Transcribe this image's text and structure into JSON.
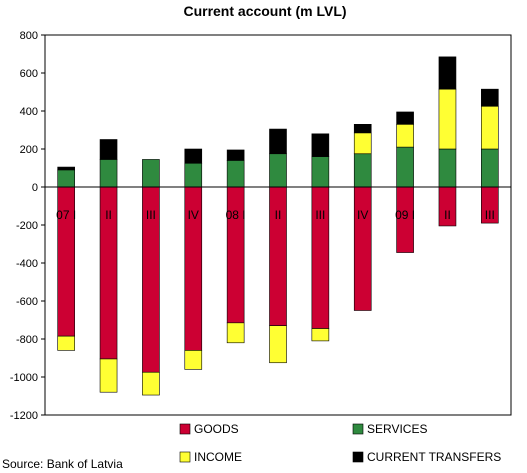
{
  "chart_data": {
    "type": "bar",
    "stacked": true,
    "title": "Current account (m LVL)",
    "source": "Source: Bank of Latvia",
    "categories": [
      "07 I",
      "II",
      "III",
      "IV",
      "08 I",
      "II",
      "III",
      "IV",
      "09 I",
      "II",
      "III"
    ],
    "ylim": [
      -1200,
      800
    ],
    "yticks": [
      800,
      600,
      400,
      200,
      0,
      -200,
      -400,
      -600,
      -800,
      -1000,
      -1200
    ],
    "grid": false,
    "legend_position": "bottom",
    "series": [
      {
        "name": "GOODS",
        "color": "#cc0033",
        "values": [
          -785,
          -905,
          -975,
          -860,
          -715,
          -730,
          -745,
          -650,
          -345,
          -205,
          -190
        ]
      },
      {
        "name": "SERVICES",
        "color": "#2f8a3f",
        "values": [
          90,
          145,
          145,
          125,
          140,
          175,
          160,
          175,
          210,
          200,
          200
        ]
      },
      {
        "name": "INCOME",
        "color": "#ffff33",
        "values": [
          -75,
          -175,
          -120,
          -100,
          -105,
          -195,
          -65,
          110,
          120,
          315,
          225
        ]
      },
      {
        "name": "CURRENT TRANSFERS",
        "color": "#000000",
        "values": [
          15,
          105,
          0,
          75,
          55,
          130,
          120,
          45,
          65,
          170,
          90
        ]
      }
    ]
  }
}
